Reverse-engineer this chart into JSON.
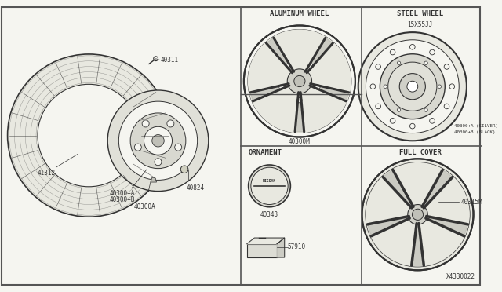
{
  "bg_color": "#f5f5f0",
  "border_color": "#555555",
  "line_color": "#333333",
  "title_diagram": "X4330022",
  "label_41312": "41312",
  "label_40311": "40311",
  "label_40300A_line1": "40300+A",
  "label_40300A_line2": "40300+B",
  "label_40300A": "40300A",
  "label_40824": "40824",
  "label_alum": "ALUMINUM WHEEL",
  "label_40300M": "40300M",
  "label_steel": "STEEL WHEEL",
  "label_15x55jj": "15X55JJ",
  "label_40300_silver": "40300+A (SILVER)",
  "label_40300_black": "40300+B (BLACK)",
  "label_ornament": "ORNAMENT",
  "label_40343": "40343",
  "label_57910": "57910",
  "label_fullcover": "FULL COVER",
  "label_40315M": "40315M"
}
